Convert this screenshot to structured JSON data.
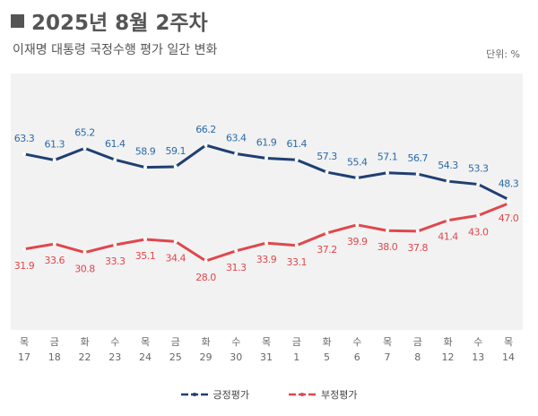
{
  "header": {
    "title": "2025년 8월 2주차",
    "subtitle": "이재명 대통령 국정수행 평가 일간 변화",
    "unit": "단위: %"
  },
  "chart_data": {
    "type": "line",
    "categories": [
      [
        "목",
        "17"
      ],
      [
        "금",
        "18"
      ],
      [
        "화",
        "22"
      ],
      [
        "수",
        "23"
      ],
      [
        "목",
        "24"
      ],
      [
        "금",
        "25"
      ],
      [
        "화",
        "29"
      ],
      [
        "수",
        "30"
      ],
      [
        "목",
        "31"
      ],
      [
        "금",
        "1"
      ],
      [
        "화",
        "5"
      ],
      [
        "수",
        "6"
      ],
      [
        "목",
        "7"
      ],
      [
        "금",
        "8"
      ],
      [
        "화",
        "12"
      ],
      [
        "수",
        "13"
      ],
      [
        "목",
        "14"
      ]
    ],
    "series": [
      {
        "name": "긍정평가",
        "color": "#1f3f73",
        "label_color": "#2a6aa8",
        "values": [
          63.3,
          61.3,
          65.2,
          61.4,
          58.9,
          59.1,
          66.2,
          63.4,
          61.9,
          61.4,
          57.3,
          55.4,
          57.1,
          56.7,
          54.3,
          53.3,
          48.3
        ]
      },
      {
        "name": "부정평가",
        "color": "#e0474c",
        "label_color": "#e0474c",
        "values": [
          31.9,
          33.6,
          30.8,
          33.3,
          35.1,
          34.4,
          28.0,
          31.3,
          33.9,
          33.1,
          37.2,
          39.9,
          38.0,
          37.8,
          41.4,
          43.0,
          47.0
        ]
      }
    ],
    "legend": "bottom-center",
    "grid": false
  }
}
